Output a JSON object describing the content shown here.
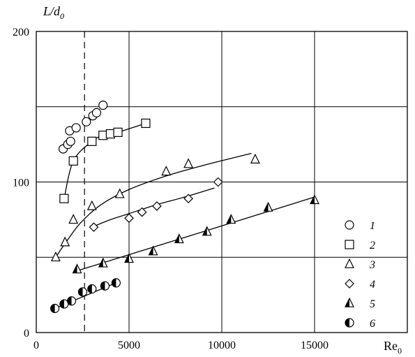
{
  "chart_data": {
    "type": "scatter",
    "title": "",
    "xlabel": "Re",
    "xlabel_sub": "0",
    "ylabel": "L/d",
    "ylabel_sub": "0",
    "xlim": [
      0,
      20000
    ],
    "ylim": [
      0,
      200
    ],
    "x_ticks": [
      0,
      5000,
      10000,
      15000
    ],
    "x_tick_labels": [
      "0",
      "5000",
      "10000",
      "15000"
    ],
    "y_ticks": [
      0,
      100,
      200
    ],
    "y_tick_labels": [
      "0",
      "100",
      "200"
    ],
    "grid": {
      "x": [
        5000,
        10000,
        15000
      ],
      "y": [
        50,
        100,
        150
      ]
    },
    "dashed_vline_x": 2600,
    "legend_position": "right",
    "series": [
      {
        "name": "1",
        "marker": "circle",
        "x": [
          1450,
          1700,
          1850,
          1800,
          2150,
          2700,
          3050,
          3250,
          3600
        ],
        "y": [
          122,
          125,
          127,
          134,
          136,
          140,
          144,
          146,
          151
        ],
        "fit": []
      },
      {
        "name": "2",
        "marker": "square",
        "x": [
          1500,
          2000,
          3000,
          3600,
          4000,
          4400,
          5900
        ],
        "y": [
          89,
          114,
          127,
          131,
          132,
          133,
          139
        ],
        "fit": [
          [
            1500,
            89
          ],
          [
            2000,
            114
          ],
          [
            3000,
            127
          ],
          [
            3600,
            131
          ],
          [
            4000,
            132
          ],
          [
            4400,
            133
          ],
          [
            5900,
            139
          ]
        ]
      },
      {
        "name": "3",
        "marker": "triangle",
        "x": [
          1050,
          1550,
          2000,
          3000,
          4500,
          7000,
          8200,
          11800
        ],
        "y": [
          50,
          60,
          75,
          84,
          92,
          107,
          112,
          115
        ],
        "fit": [
          [
            1050,
            50
          ],
          [
            1600,
            60
          ],
          [
            2400,
            73
          ],
          [
            3500,
            85
          ],
          [
            5000,
            95
          ],
          [
            7000,
            104
          ],
          [
            9000,
            111
          ],
          [
            11600,
            119
          ]
        ]
      },
      {
        "name": "4",
        "marker": "diamond",
        "x": [
          3100,
          5000,
          5700,
          6500,
          8200,
          9800
        ],
        "y": [
          70,
          76,
          80,
          84,
          89,
          100
        ],
        "fit": [
          [
            3000,
            70
          ],
          [
            4000,
            75
          ],
          [
            5000,
            79
          ],
          [
            6500,
            85
          ],
          [
            8000,
            90
          ],
          [
            9600,
            96
          ]
        ]
      },
      {
        "name": "5",
        "marker": "triangle-half",
        "x": [
          2200,
          3600,
          5000,
          6300,
          7700,
          9200,
          10500,
          12500,
          15000
        ],
        "y": [
          42,
          46,
          49,
          54,
          62,
          67,
          75,
          83,
          88
        ],
        "fit": [
          [
            2200,
            41
          ],
          [
            15000,
            90
          ]
        ]
      },
      {
        "name": "6",
        "marker": "circle-half",
        "x": [
          1000,
          1500,
          1900,
          2500,
          3000,
          3700,
          4300
        ],
        "y": [
          16,
          19,
          21,
          27,
          29,
          31,
          33
        ],
        "fit": [
          [
            1000,
            16
          ],
          [
            4300,
            33
          ]
        ]
      }
    ]
  }
}
